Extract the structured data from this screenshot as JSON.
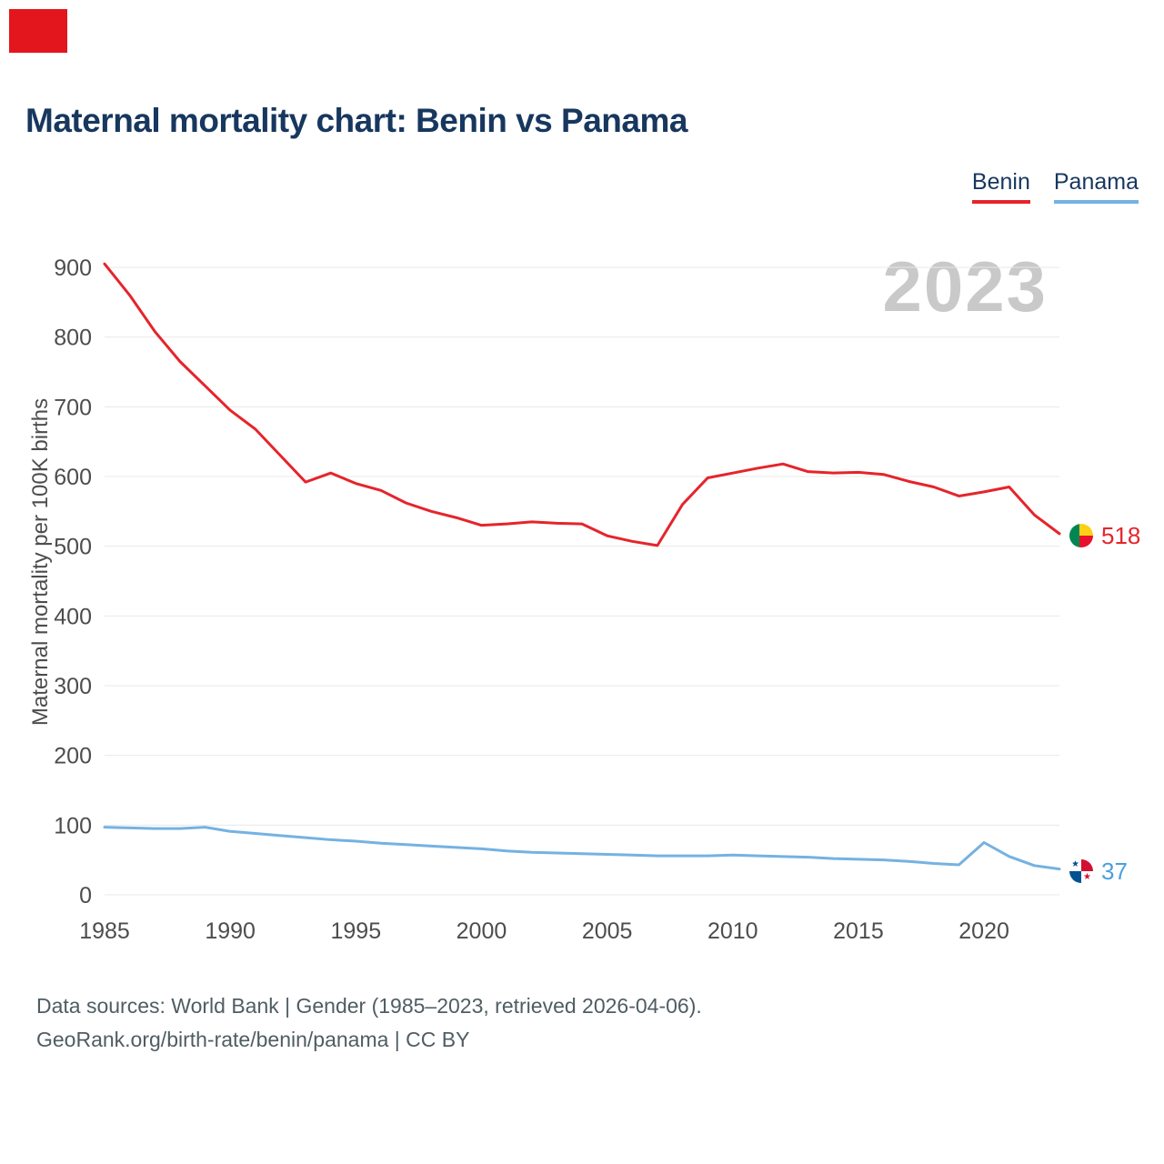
{
  "page": {
    "title": "Maternal mortality chart: Benin vs Panama",
    "watermark_year": "2023",
    "footer_line1": "Data sources: World Bank | Gender (1985–2023, retrieved 2026-04-06).",
    "footer_line2": "GeoRank.org/birth-rate/benin/panama | CC BY"
  },
  "legend": {
    "items": [
      {
        "label": "Benin",
        "color": "#e6242b"
      },
      {
        "label": "Panama",
        "color": "#74b2e2"
      }
    ]
  },
  "axis": {
    "y_label": "Maternal mortality per 100K births"
  },
  "end_labels": {
    "benin_value": "518",
    "panama_value": "37"
  },
  "colors": {
    "benin_line": "#e6242b",
    "panama_line": "#74b2e2",
    "title": "#17375e",
    "watermark": "#c9c9c9",
    "corner_block": "#e3161d"
  },
  "chart_data": {
    "type": "line",
    "title": "Maternal mortality chart: Benin vs Panama",
    "xlabel": "",
    "ylabel": "Maternal mortality per 100K births",
    "x": [
      1985,
      1986,
      1987,
      1988,
      1989,
      1990,
      1991,
      1992,
      1993,
      1994,
      1995,
      1996,
      1997,
      1998,
      1999,
      2000,
      2001,
      2002,
      2003,
      2004,
      2005,
      2006,
      2007,
      2008,
      2009,
      2010,
      2011,
      2012,
      2013,
      2014,
      2015,
      2016,
      2017,
      2018,
      2019,
      2020,
      2021,
      2022,
      2023
    ],
    "series": [
      {
        "name": "Benin",
        "color": "#e6242b",
        "values": [
          905,
          860,
          808,
          765,
          730,
          695,
          668,
          630,
          592,
          605,
          590,
          580,
          562,
          550,
          541,
          530,
          532,
          535,
          533,
          532,
          515,
          507,
          501,
          560,
          598,
          605,
          612,
          618,
          607,
          605,
          606,
          603,
          593,
          585,
          572,
          578,
          585,
          545,
          518
        ]
      },
      {
        "name": "Panama",
        "color": "#74b2e2",
        "values": [
          97,
          96,
          95,
          95,
          97,
          91,
          88,
          85,
          82,
          79,
          77,
          74,
          72,
          70,
          68,
          66,
          63,
          61,
          60,
          59,
          58,
          57,
          56,
          56,
          56,
          57,
          56,
          55,
          54,
          52,
          51,
          50,
          48,
          45,
          43,
          75,
          55,
          42,
          37
        ]
      }
    ],
    "xticks": [
      1985,
      1990,
      1995,
      2000,
      2005,
      2010,
      2015,
      2020
    ],
    "yticks": [
      0,
      100,
      200,
      300,
      400,
      500,
      600,
      700,
      800,
      900
    ],
    "ylim": [
      0,
      900
    ],
    "grid": true,
    "legend_position": "top-right"
  }
}
